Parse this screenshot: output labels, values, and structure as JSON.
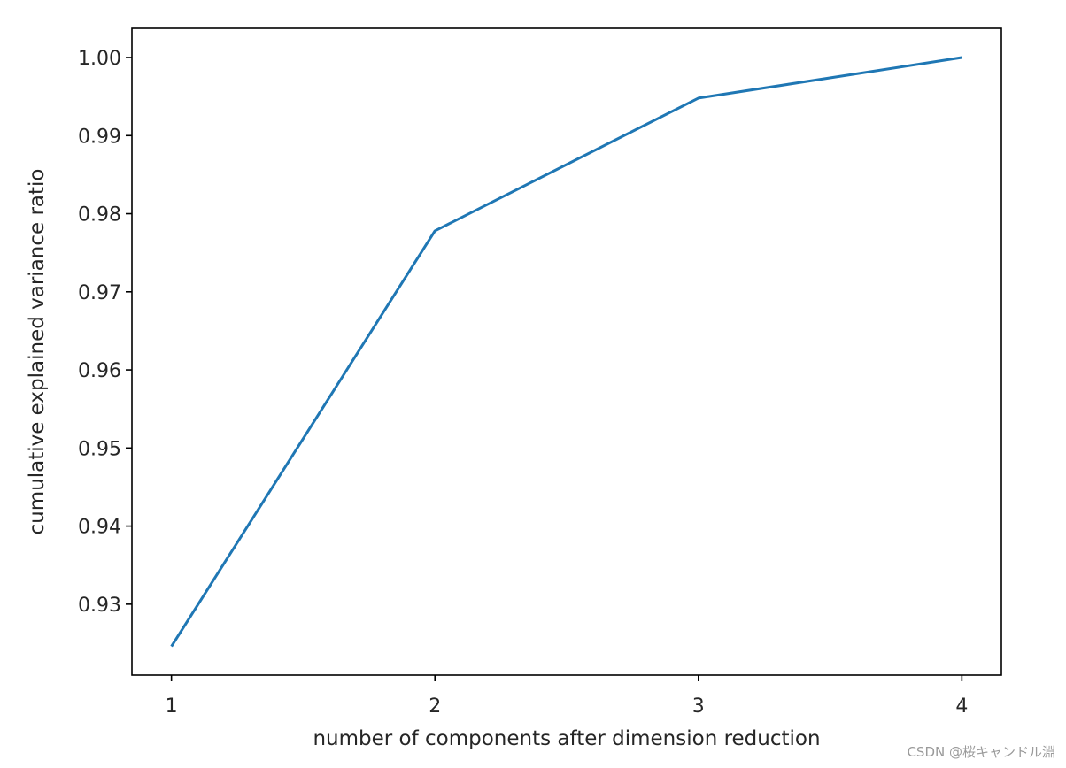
{
  "chart_data": {
    "type": "line",
    "title": "",
    "xlabel": "number of components after dimension reduction",
    "ylabel": "cumulative explained variance ratio",
    "x": [
      1,
      2,
      3,
      4
    ],
    "series": [
      {
        "values": [
          0.9246,
          0.9778,
          0.9948,
          1.0
        ],
        "color": "#1f77b4"
      }
    ],
    "xticks": [
      1,
      2,
      3,
      4
    ],
    "xtick_labels": [
      "1",
      "2",
      "3",
      "4"
    ],
    "yticks": [
      0.93,
      0.94,
      0.95,
      0.96,
      0.97,
      0.98,
      0.99,
      1.0
    ],
    "ytick_labels": [
      "0.93",
      "0.94",
      "0.95",
      "0.96",
      "0.97",
      "0.98",
      "0.99",
      "1.00"
    ],
    "xlim": [
      0.85,
      4.15
    ],
    "ylim": [
      0.92092,
      1.00374
    ],
    "grid": false,
    "legend": false
  },
  "watermark": "CSDN @桜キャンドル淵"
}
